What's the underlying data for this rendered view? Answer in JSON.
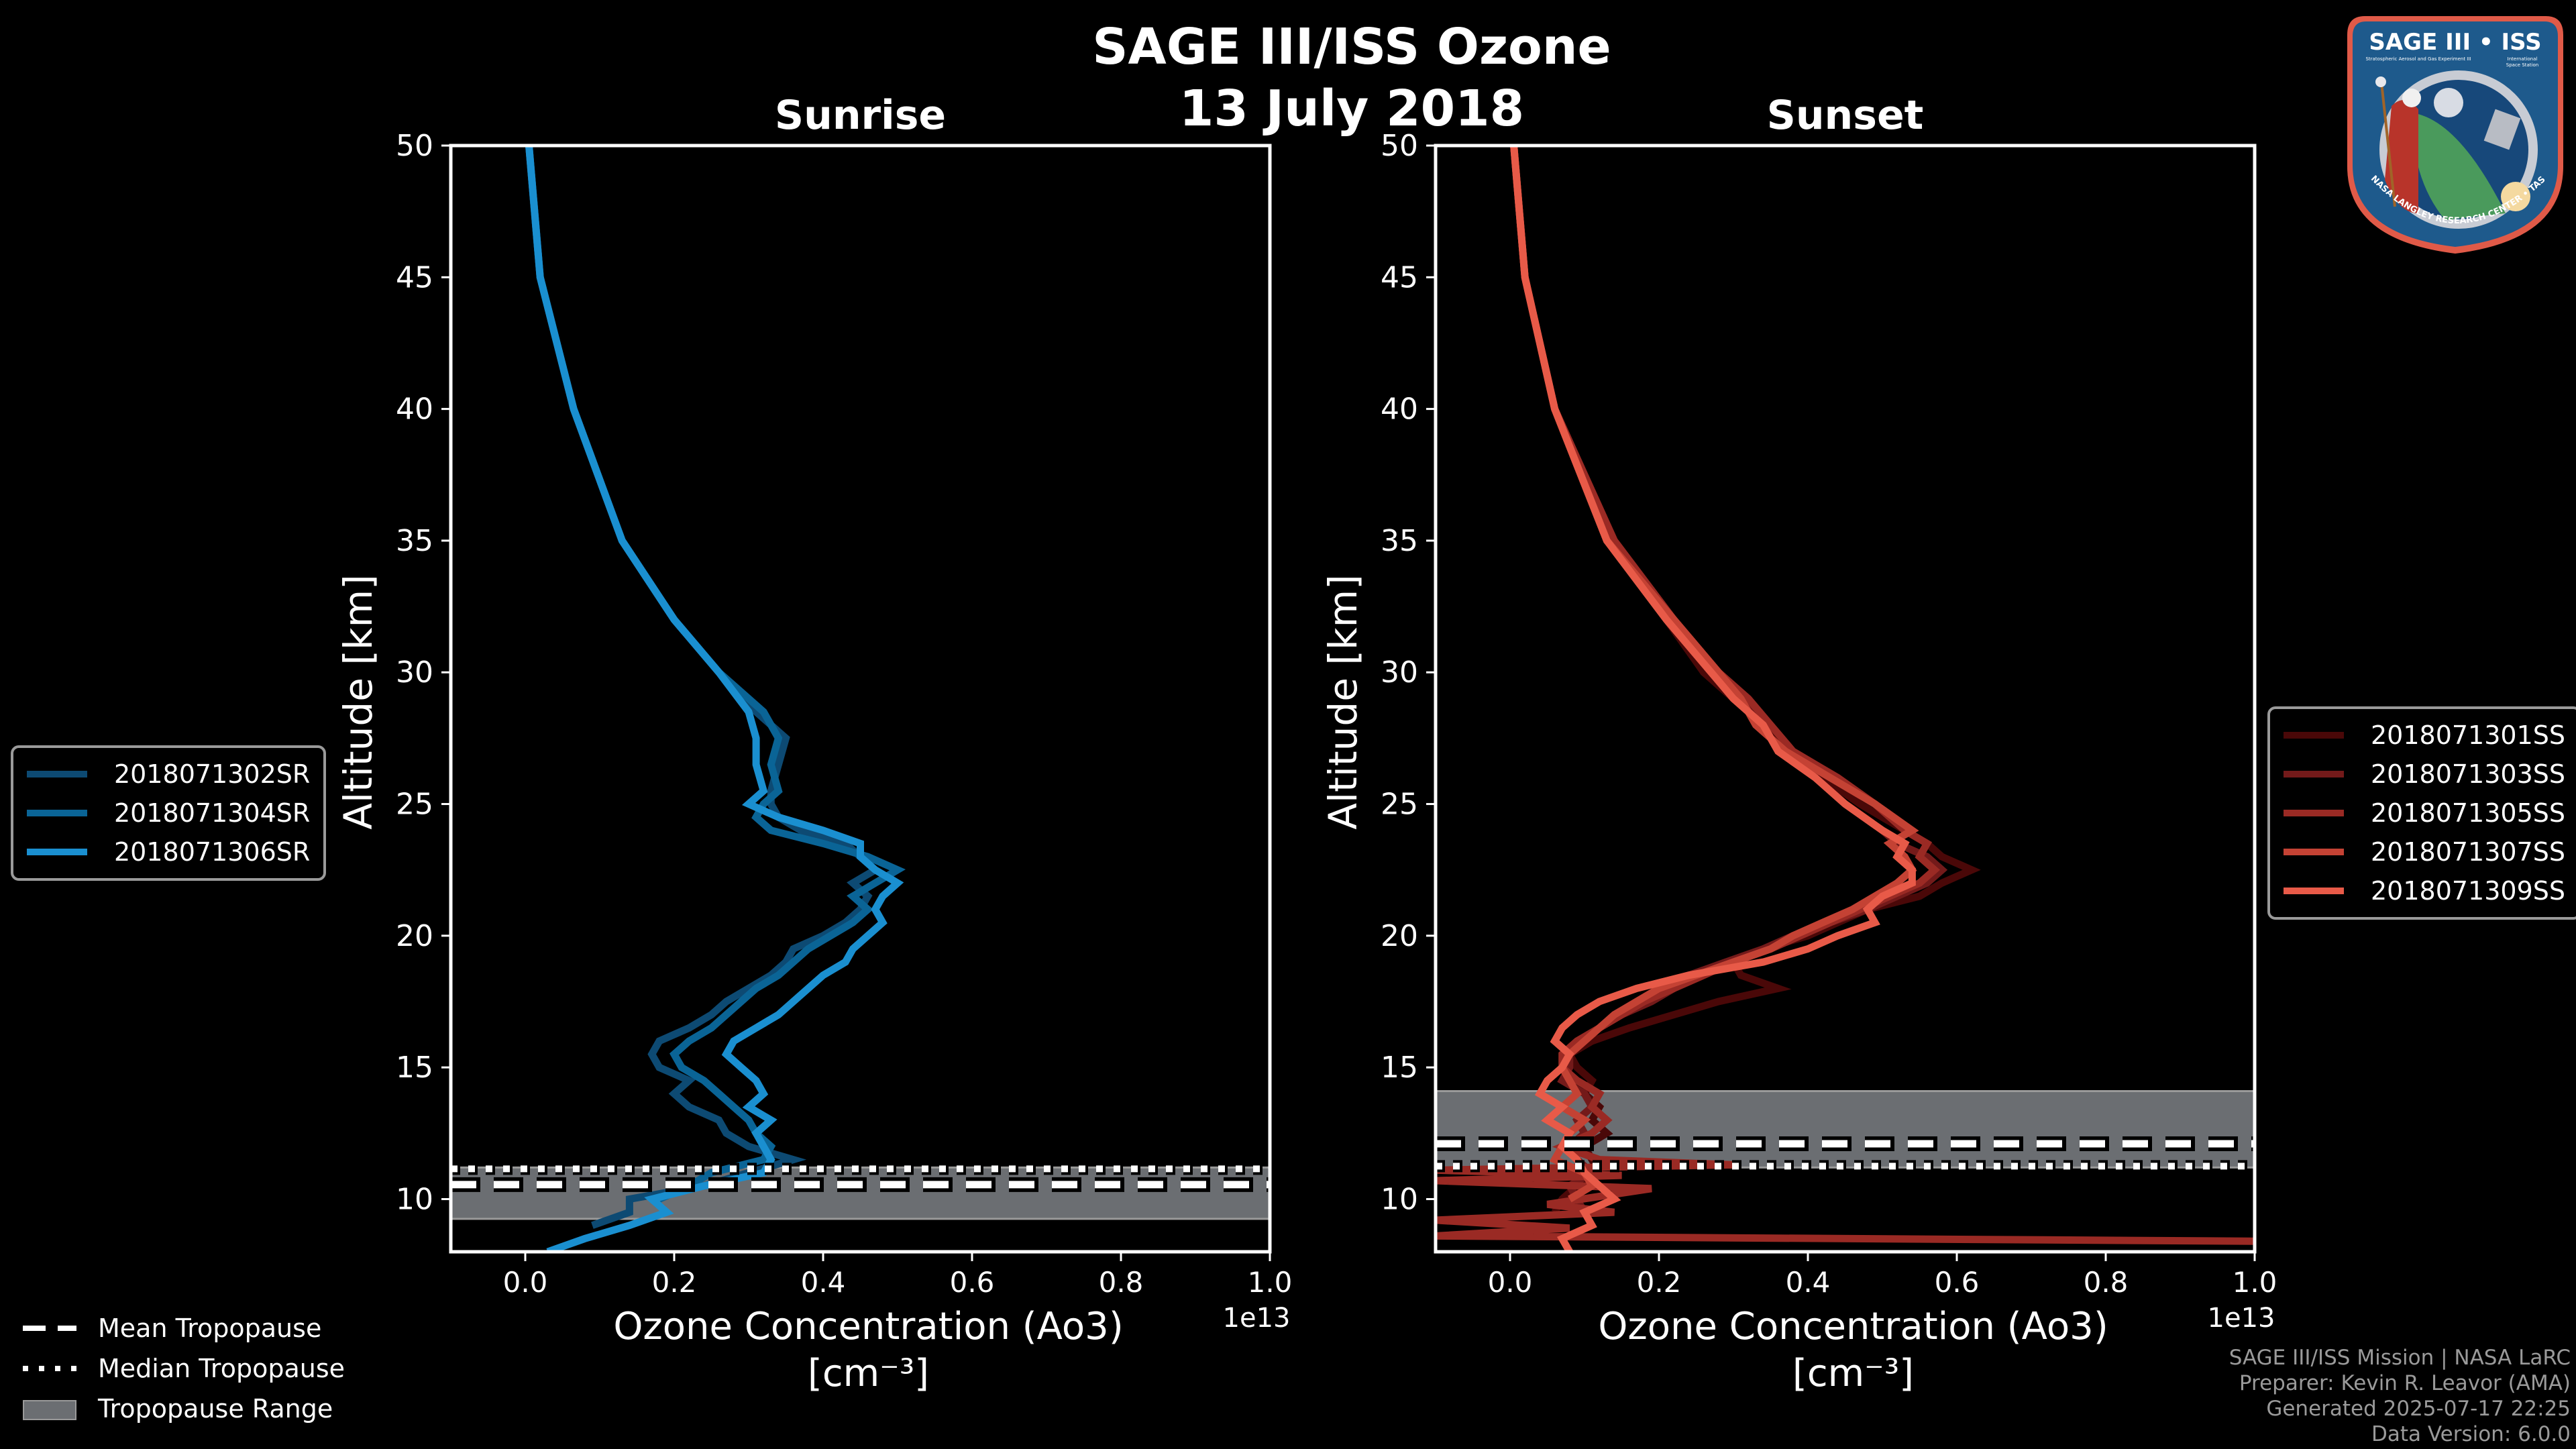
{
  "chart_data": {
    "type": "line",
    "title": "SAGE III/ISS Ozone",
    "subtitle": "13 July 2018",
    "y_label": "Altitude [km]",
    "x_label_line1": "Ozone Concentration (Ao3)",
    "x_label_line2": "[cm⁻³]",
    "x_multiplier": "1e13",
    "xlim": [
      -0.1,
      1.0
    ],
    "ylim": [
      8,
      50
    ],
    "x_ticks": [
      "0.0",
      "0.2",
      "0.4",
      "0.6",
      "0.8",
      "1.0"
    ],
    "x_tick_values": [
      0.0,
      0.2,
      0.4,
      0.6,
      0.8,
      1.0
    ],
    "y_ticks": [
      "10",
      "15",
      "20",
      "25",
      "30",
      "35",
      "40",
      "45",
      "50"
    ],
    "y_tick_values": [
      10,
      15,
      20,
      25,
      30,
      35,
      40,
      45,
      50
    ],
    "panels": [
      {
        "name": "Sunrise",
        "tropopause": {
          "mean": 10.55,
          "median": 11.15,
          "range": [
            9.25,
            11.2
          ]
        },
        "legend_position": "left",
        "series": [
          {
            "name": "2018071302SR",
            "color": "#0d4a73",
            "altitude": [
              50,
              45,
              40,
              35,
              32,
              30,
              28.5,
              27.5,
              26.5,
              25.5,
              25,
              24.5,
              24,
              23.5,
              23,
              22.5,
              22,
              21.5,
              21,
              20.5,
              20,
              19.5,
              19,
              18.5,
              18,
              17.5,
              17,
              16.5,
              16,
              15.5,
              15,
              14.5,
              14,
              13.5,
              13,
              12.5,
              12,
              11.5,
              11,
              10.5,
              10,
              9.5,
              9
            ],
            "values": [
              0.005,
              0.02,
              0.065,
              0.13,
              0.2,
              0.26,
              0.31,
              0.35,
              0.34,
              0.33,
              0.33,
              0.34,
              0.37,
              0.43,
              0.45,
              0.47,
              0.44,
              0.46,
              0.45,
              0.43,
              0.4,
              0.36,
              0.35,
              0.33,
              0.3,
              0.27,
              0.25,
              0.22,
              0.18,
              0.17,
              0.18,
              0.22,
              0.2,
              0.22,
              0.26,
              0.27,
              0.3,
              0.36,
              0.3,
              0.24,
              0.14,
              0.14,
              0.09
            ]
          },
          {
            "name": "2018071304SR",
            "color": "#0a6496",
            "altitude": [
              50,
              45,
              40,
              35,
              32,
              30,
              28.5,
              27.5,
              26.5,
              25.5,
              25,
              24.5,
              24,
              23.5,
              23,
              22.5,
              22,
              21.5,
              21,
              20.5,
              20,
              19.5,
              19,
              18.5,
              18,
              17.5,
              17,
              16.5,
              16,
              15.5,
              15,
              14.5,
              14,
              13.5,
              13,
              12.5,
              12,
              11.5,
              11,
              10.5,
              10
            ],
            "values": [
              0.005,
              0.02,
              0.065,
              0.13,
              0.2,
              0.26,
              0.32,
              0.34,
              0.33,
              0.34,
              0.32,
              0.31,
              0.33,
              0.4,
              0.46,
              0.5,
              0.47,
              0.44,
              0.46,
              0.44,
              0.41,
              0.38,
              0.36,
              0.34,
              0.31,
              0.29,
              0.27,
              0.25,
              0.22,
              0.2,
              0.21,
              0.24,
              0.26,
              0.28,
              0.3,
              0.31,
              0.33,
              0.32,
              0.25,
              0.22,
              0.18
            ]
          },
          {
            "name": "2018071306SR",
            "color": "#1a8fd0",
            "altitude": [
              50,
              45,
              40,
              35,
              32,
              30,
              28.5,
              27.5,
              26.5,
              25.5,
              25,
              24.5,
              24,
              23.5,
              23,
              22.5,
              22,
              21.5,
              21,
              20.5,
              20,
              19.5,
              19,
              18.5,
              18,
              17.5,
              17,
              16.5,
              16,
              15.5,
              15,
              14.5,
              14,
              13.5,
              13,
              12.5,
              12,
              11.5,
              11,
              10.5,
              10,
              9.5,
              9,
              8.5,
              8
            ],
            "values": [
              0.005,
              0.02,
              0.065,
              0.13,
              0.2,
              0.26,
              0.3,
              0.31,
              0.31,
              0.32,
              0.3,
              0.34,
              0.4,
              0.45,
              0.45,
              0.47,
              0.5,
              0.48,
              0.47,
              0.48,
              0.46,
              0.44,
              0.43,
              0.4,
              0.38,
              0.36,
              0.34,
              0.31,
              0.28,
              0.27,
              0.29,
              0.31,
              0.32,
              0.3,
              0.33,
              0.31,
              0.32,
              0.33,
              0.32,
              0.24,
              0.17,
              0.19,
              0.14,
              0.08,
              0.03
            ]
          }
        ]
      },
      {
        "name": "Sunset",
        "tropopause": {
          "mean": 12.1,
          "median": 11.25,
          "range": [
            11.2,
            14.1
          ]
        },
        "legend_position": "right",
        "series": [
          {
            "name": "2018071301SS",
            "color": "#4a0808",
            "altitude": [
              50,
              45,
              40,
              35,
              32,
              30,
              29,
              28,
              27,
              26,
              25,
              24,
              23.5,
              23,
              22.5,
              22,
              21.5,
              21,
              20.5,
              20,
              19.5,
              19,
              18.5,
              18,
              17.5,
              17,
              16.5,
              16,
              15.5,
              15,
              14.5,
              14,
              13.5,
              13,
              12.5,
              12,
              11.5,
              11,
              10.5,
              10,
              9.5
            ],
            "values": [
              0.005,
              0.02,
              0.06,
              0.13,
              0.21,
              0.26,
              0.3,
              0.34,
              0.37,
              0.42,
              0.47,
              0.53,
              0.56,
              0.58,
              0.62,
              0.58,
              0.55,
              0.48,
              0.44,
              0.4,
              0.34,
              0.3,
              0.31,
              0.36,
              0.28,
              0.22,
              0.16,
              0.11,
              0.08,
              0.09,
              0.11,
              0.1,
              0.12,
              0.11,
              0.13,
              0.1,
              0.11,
              0.12,
              0.09,
              0.07,
              0.06
            ]
          },
          {
            "name": "2018071303SS",
            "color": "#731a1a",
            "altitude": [
              50,
              45,
              40,
              35,
              32,
              30,
              29,
              28,
              27,
              26,
              25,
              24,
              23.5,
              23,
              22.5,
              22,
              21.5,
              21,
              20.5,
              20,
              19.5,
              19,
              18.5,
              18,
              17.5,
              17,
              16.5,
              16,
              15.5,
              15,
              14.5,
              14,
              13.5,
              13,
              12.5,
              12,
              11.5,
              11,
              10.5,
              10,
              9.5
            ],
            "values": [
              0.005,
              0.02,
              0.06,
              0.13,
              0.22,
              0.27,
              0.31,
              0.34,
              0.36,
              0.41,
              0.45,
              0.5,
              0.52,
              0.56,
              0.58,
              0.56,
              0.52,
              0.48,
              0.43,
              0.38,
              0.34,
              0.29,
              0.24,
              0.22,
              0.19,
              0.15,
              0.12,
              0.1,
              0.08,
              0.08,
              0.07,
              0.1,
              0.11,
              0.09,
              0.1,
              0.08,
              0.09,
              0.11,
              0.08,
              0.09,
              0.1
            ]
          },
          {
            "name": "2018071305SS",
            "color": "#9a2a24",
            "altitude": [
              50,
              45,
              40,
              35,
              32,
              30,
              29,
              28,
              27,
              26,
              25,
              24,
              23.5,
              23,
              22.5,
              22,
              21.5,
              21,
              20.5,
              20,
              19.5,
              19,
              18.5,
              18,
              17.5,
              17,
              16.5,
              16,
              15.5,
              15,
              14.5,
              14,
              13.5,
              13,
              12.5,
              12,
              11.5,
              11.3,
              11.1,
              10.9,
              10.7,
              10.4,
              10.1,
              9.8,
              9.5,
              9.2,
              8.9,
              8.6,
              8.4
            ],
            "values": [
              0.005,
              0.02,
              0.06,
              0.14,
              0.22,
              0.28,
              0.32,
              0.35,
              0.38,
              0.44,
              0.49,
              0.53,
              0.56,
              0.55,
              0.57,
              0.55,
              0.51,
              0.47,
              0.43,
              0.39,
              0.35,
              0.3,
              0.26,
              0.22,
              0.18,
              0.15,
              0.12,
              0.09,
              0.07,
              0.07,
              0.09,
              0.12,
              0.11,
              0.13,
              0.11,
              0.07,
              0.12,
              0.3,
              -0.1,
              0.15,
              -0.1,
              0.19,
              0.12,
              0.05,
              0.14,
              -0.1,
              0.08,
              -0.1,
              1.0
            ]
          },
          {
            "name": "2018071307SS",
            "color": "#c44234",
            "altitude": [
              50,
              45,
              40,
              35,
              32,
              30,
              29,
              28,
              27,
              26,
              25,
              24,
              23.5,
              23,
              22.5,
              22,
              21.5,
              21,
              20.5,
              20,
              19.5,
              19,
              18.5,
              18,
              17.5,
              17,
              16.5,
              16,
              15.5,
              15,
              14.5,
              14,
              13.5,
              13,
              12.5,
              12,
              11.5,
              11,
              10.5,
              10
            ],
            "values": [
              0.005,
              0.02,
              0.06,
              0.13,
              0.22,
              0.28,
              0.31,
              0.33,
              0.37,
              0.43,
              0.49,
              0.54,
              0.51,
              0.53,
              0.54,
              0.52,
              0.49,
              0.46,
              0.42,
              0.38,
              0.35,
              0.3,
              0.25,
              0.2,
              0.17,
              0.14,
              0.12,
              0.1,
              0.08,
              0.07,
              0.08,
              0.09,
              0.07,
              0.1,
              0.08,
              0.07,
              0.06,
              0.1,
              0.11,
              0.08
            ]
          },
          {
            "name": "2018071309SS",
            "color": "#e85a48",
            "altitude": [
              50,
              45,
              40,
              35,
              32,
              30,
              29,
              28,
              27,
              26,
              25,
              24,
              23.5,
              23,
              22.5,
              22,
              21.5,
              21,
              20.5,
              20,
              19.5,
              19,
              18.5,
              18,
              17.5,
              17,
              16.5,
              16,
              15.5,
              15,
              14.5,
              14,
              13.5,
              13,
              12.5,
              12,
              11.5,
              11,
              10.5,
              10,
              9.5,
              9,
              8.5,
              8
            ],
            "values": [
              0.005,
              0.02,
              0.06,
              0.13,
              0.21,
              0.27,
              0.3,
              0.34,
              0.36,
              0.41,
              0.45,
              0.5,
              0.53,
              0.52,
              0.54,
              0.54,
              0.5,
              0.48,
              0.49,
              0.44,
              0.4,
              0.34,
              0.24,
              0.17,
              0.12,
              0.09,
              0.07,
              0.06,
              0.08,
              0.07,
              0.05,
              0.04,
              0.07,
              0.05,
              0.08,
              0.07,
              0.09,
              0.1,
              0.12,
              0.14,
              0.1,
              0.11,
              0.07,
              0.08
            ]
          }
        ]
      }
    ],
    "legend_common": [
      {
        "label": "Mean Tropopause",
        "style": "dashed"
      },
      {
        "label": "Median Tropopause",
        "style": "dotted"
      },
      {
        "label": "Tropopause Range",
        "style": "band"
      }
    ]
  },
  "colors": {
    "background": "#000000",
    "band": "#6b6e72",
    "axis": "#ffffff",
    "footer": "#9a9a9a"
  },
  "logo": {
    "title_left": "SAGE III",
    "title_right": "ISS",
    "sub_left": "Stratospheric Aerosol and Gas Experiment III",
    "sub_right_1": "International",
    "sub_right_2": "Space Station",
    "ring_text": "BALL • NASA LANGLEY RESEARCH CENTER • TAS-I • ESA"
  },
  "footer": {
    "line1": "SAGE III/ISS Mission | NASA LaRC",
    "line2": "Preparer: Kevin R. Leavor (AMA)",
    "line3": "Generated 2025-07-17 22:25",
    "line4": "Data Version: 6.0.0"
  }
}
